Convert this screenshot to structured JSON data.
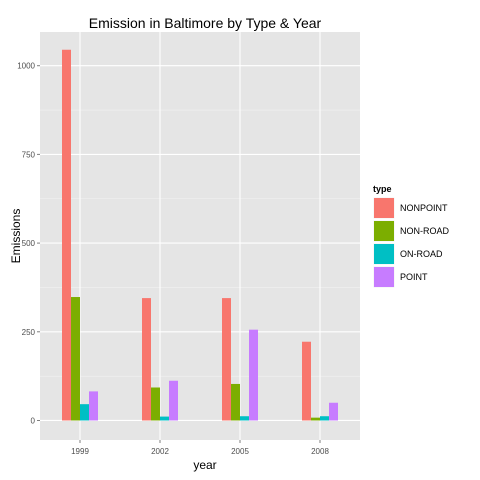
{
  "chart_data": {
    "type": "bar",
    "title": "Emission in Baltimore by Type & Year",
    "xlabel": "year",
    "ylabel": "Emissions",
    "categories": [
      "1999",
      "2002",
      "2005",
      "2008"
    ],
    "series": [
      {
        "name": "NONPOINT",
        "color": "#F8766D",
        "values": [
          1045,
          345,
          345,
          222
        ]
      },
      {
        "name": "NON-ROAD",
        "color": "#7CAE00",
        "values": [
          348,
          93,
          103,
          8
        ]
      },
      {
        "name": "ON-ROAD",
        "color": "#00BFC4",
        "values": [
          46,
          11,
          12,
          12
        ]
      },
      {
        "name": "POINT",
        "color": "#C77CFF",
        "values": [
          82,
          112,
          256,
          50
        ]
      }
    ],
    "yticks": [
      0,
      250,
      500,
      750,
      1000
    ],
    "ylim": [
      -55,
      1095
    ],
    "grid": true,
    "panel_background": "#E5E5E5",
    "legend": {
      "title": "type",
      "placement": "right"
    }
  }
}
